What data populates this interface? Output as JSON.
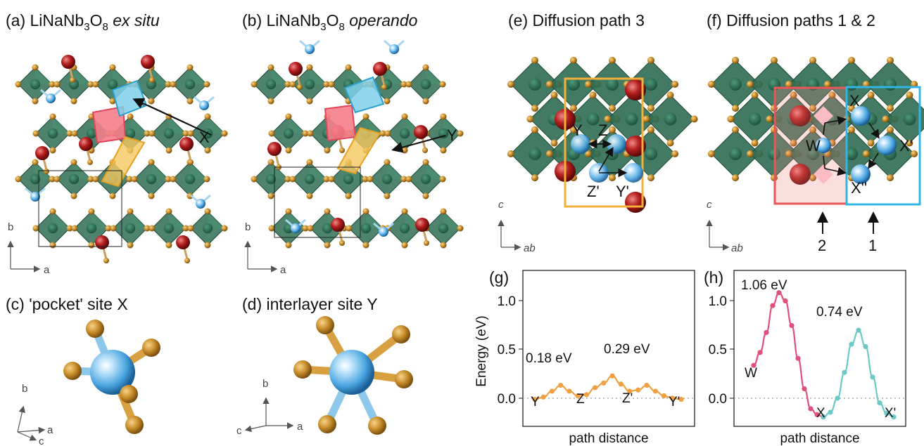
{
  "panels": {
    "a": {
      "tag": "(a)",
      "title_main": "LiNaNb",
      "sub1": "3",
      "mid": "O",
      "sub2": "8",
      "italic": " ex situ",
      "site_label": "X",
      "axis_v": "b",
      "axis_h": "a"
    },
    "b": {
      "tag": "(b)",
      "title_main": "LiNaNb",
      "sub1": "3",
      "mid": "O",
      "sub2": "8",
      "italic": " operando",
      "site_label": "Y",
      "axis_v": "b",
      "axis_h": "a"
    },
    "c": {
      "title": "(c) 'pocket' site X",
      "axis_v": "b",
      "axis_h": "a",
      "axis_d": "c"
    },
    "d": {
      "title": "(d) interlayer site Y",
      "axis_v": "b",
      "axis_h": "a",
      "axis_d": "c"
    },
    "e": {
      "title": "(e) Diffusion path 3",
      "sites": [
        "Y",
        "Z",
        "Z'",
        "Y'"
      ],
      "axis_v": "c",
      "axis_h": "ab"
    },
    "f": {
      "title": "(f) Diffusion paths 1 & 2",
      "sites": [
        "X",
        "W",
        "X'",
        "X''"
      ],
      "path_labels": [
        "2",
        "1"
      ],
      "axis_v": "c",
      "axis_h": "ab"
    },
    "g": {
      "tag": "(g)",
      "xlabel": "path distance",
      "ylabel": "Energy (eV)",
      "yticks": [
        "1.0",
        "0.5",
        "0.0"
      ],
      "site_labels": [
        "Y",
        "Z",
        "Z'",
        "Y'"
      ],
      "annotations": [
        "0.18 eV",
        "0.29 eV"
      ]
    },
    "h": {
      "tag": "(h)",
      "xlabel": "path distance",
      "yticks": [
        "1.0",
        "0.5",
        "0.0"
      ],
      "site_labels": [
        "W",
        "X",
        "X'"
      ],
      "annotations": [
        "1.06 eV",
        "0.74 eV"
      ]
    }
  },
  "chart_data": [
    {
      "type": "line",
      "xlabel": "path distance",
      "ylabel": "Energy (eV)",
      "ylim": [
        -0.08,
        1.25
      ],
      "yticks": [
        0.0,
        0.5,
        1.0
      ],
      "color": "#f0a040",
      "grid": false,
      "series": [
        {
          "values": [
            0.15,
            0.17,
            0.22,
            0.27,
            0.22,
            0.18,
            0.19,
            0.25,
            0.29,
            0.35,
            0.28,
            0.22,
            0.23,
            0.27,
            0.22,
            0.18,
            0.16,
            0.15
          ]
        }
      ]
    },
    {
      "type": "line",
      "xlabel": "path distance",
      "ylim": [
        -0.08,
        1.25
      ],
      "yticks": [
        0.0,
        0.5,
        1.0
      ],
      "grid": false,
      "series": [
        {
          "color": "#e0507a",
          "values": [
            0.44,
            0.55,
            0.72,
            0.95,
            1.06,
            0.99,
            0.78,
            0.5,
            0.24,
            0.07,
            0.02,
            0.0
          ]
        },
        {
          "color": "#6cc9c8",
          "values": [
            0.0,
            0.04,
            0.16,
            0.38,
            0.62,
            0.74,
            0.6,
            0.34,
            0.12,
            0.03,
            0.0
          ]
        }
      ]
    }
  ]
}
